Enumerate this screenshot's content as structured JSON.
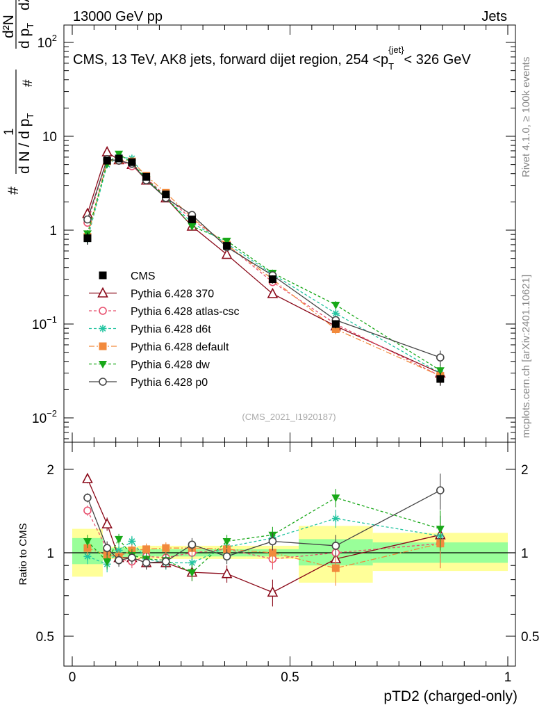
{
  "header": {
    "left": "13000 GeV pp",
    "right": "Jets"
  },
  "side_labels": {
    "rivet": "Rivet 4.1.0, ≥ 100k events",
    "mcplots": "mcplots.cern.ch [arXiv:2401.10621]"
  },
  "watermark": "(CMS_2021_I1920187)",
  "main_title": {
    "prefix": "CMS, 13 TeV, AK8 jets, forward dijet region, 254 <",
    "symbol": "p",
    "subscript": "T",
    "superscript": "{jet}",
    "suffix": "< 326 GeV"
  },
  "y_axis_label": {
    "hash": "#",
    "one": "1",
    "dN": "d N / d p",
    "sub_T": "T",
    "hash2": "#",
    "d2N": "d²N",
    "dpT": "d p",
    "sub_T2": "T",
    "dlambda": "dλ"
  },
  "colors": {
    "CMS": "#000000",
    "370": "#8b0a1a",
    "atlas-csc": "#e8506e",
    "d6t": "#22c4a0",
    "default": "#f28a3c",
    "dw": "#18a818",
    "p0": "#444444",
    "band_outer": "#ffff99",
    "band_inner": "#99ff99"
  },
  "chart_data": [
    {
      "type": "line",
      "panel": "main",
      "yscale": "log",
      "ylim": [
        0.005,
        160
      ],
      "xlim": [
        -0.04,
        1.0
      ],
      "xlabel": "",
      "ylabel": "1/N dN/dpT d2N/dpT dlambda",
      "y_ticks": [
        {
          "value": 0.01,
          "base": "10",
          "exp": "−2"
        },
        {
          "value": 0.1,
          "base": "10",
          "exp": "−1"
        },
        {
          "value": 1,
          "base": "1",
          "exp": ""
        },
        {
          "value": 10,
          "base": "10",
          "exp": ""
        },
        {
          "value": 100,
          "base": "10",
          "exp": "2"
        }
      ],
      "x_bin_edges": [
        0.0,
        0.07,
        0.09,
        0.125,
        0.15,
        0.19,
        0.24,
        0.31,
        0.4,
        0.52,
        0.69,
        1.0
      ],
      "x": [
        0.035,
        0.08,
        0.107,
        0.137,
        0.17,
        0.215,
        0.275,
        0.355,
        0.46,
        0.605,
        0.845
      ],
      "series": [
        {
          "name": "CMS",
          "label": "CMS",
          "marker": "square-filled",
          "dash": "none",
          "values": [
            0.82,
            5.5,
            5.8,
            5.3,
            3.7,
            2.4,
            1.3,
            0.68,
            0.3,
            0.1,
            0.026
          ],
          "errors": [
            0.12,
            0.3,
            0.3,
            0.3,
            0.2,
            0.15,
            0.1,
            0.05,
            0.03,
            0.01,
            0.004
          ]
        },
        {
          "name": "370",
          "label": "Pythia 6.428 370",
          "marker": "triangle-up-open",
          "dash": "none",
          "values": [
            1.5,
            6.8,
            5.6,
            5.0,
            3.4,
            2.2,
            1.1,
            0.55,
            0.21,
            0.095,
            0.03
          ],
          "errors": [
            0.1,
            0.3,
            0.3,
            0.3,
            0.2,
            0.12,
            0.08,
            0.04,
            0.02,
            0.01,
            0.005
          ]
        },
        {
          "name": "atlas-csc",
          "label": "Pythia 6.428 atlas-csc",
          "marker": "circle-open",
          "dash": "4,3",
          "values": [
            1.2,
            5.6,
            5.5,
            4.8,
            3.6,
            2.3,
            1.3,
            0.7,
            0.28,
            0.1,
            0.028
          ],
          "errors": [
            0.08,
            0.3,
            0.3,
            0.3,
            0.2,
            0.12,
            0.08,
            0.05,
            0.02,
            0.01,
            0.005
          ]
        },
        {
          "name": "d6t",
          "label": "Pythia 6.428 d6t",
          "marker": "star",
          "dash": "4,3",
          "values": [
            0.8,
            5.0,
            6.0,
            5.8,
            3.5,
            2.2,
            1.2,
            0.72,
            0.34,
            0.13,
            0.03
          ],
          "errors": [
            0.08,
            0.3,
            0.3,
            0.3,
            0.2,
            0.12,
            0.08,
            0.05,
            0.03,
            0.01,
            0.005
          ]
        },
        {
          "name": "default",
          "label": "Pythia 6.428 default",
          "marker": "square-filled",
          "dash": "8,3,2,3",
          "values": [
            0.85,
            5.4,
            5.6,
            5.4,
            3.8,
            2.5,
            1.35,
            0.7,
            0.3,
            0.088,
            0.028
          ],
          "errors": [
            0.08,
            0.3,
            0.3,
            0.3,
            0.2,
            0.12,
            0.08,
            0.05,
            0.02,
            0.01,
            0.005
          ]
        },
        {
          "name": "dw",
          "label": "Pythia 6.428 dw",
          "marker": "triangle-down-filled",
          "dash": "4,3",
          "values": [
            0.92,
            5.1,
            6.5,
            5.2,
            3.5,
            2.25,
            1.1,
            0.77,
            0.35,
            0.16,
            0.032
          ],
          "errors": [
            0.08,
            0.3,
            0.3,
            0.3,
            0.2,
            0.12,
            0.08,
            0.05,
            0.03,
            0.015,
            0.005
          ]
        },
        {
          "name": "p0",
          "label": "Pythia 6.428 p0",
          "marker": "circle-open",
          "dash": "none",
          "values": [
            1.3,
            5.7,
            5.5,
            5.1,
            3.4,
            2.2,
            1.45,
            0.66,
            0.33,
            0.11,
            0.044
          ],
          "errors": [
            0.08,
            0.3,
            0.3,
            0.3,
            0.2,
            0.12,
            0.08,
            0.05,
            0.03,
            0.01,
            0.008
          ]
        }
      ],
      "legend": {
        "placement": "middle-left"
      }
    },
    {
      "type": "line",
      "panel": "ratio",
      "yscale": "log",
      "ylim": [
        0.4,
        2.4
      ],
      "xlim": [
        -0.04,
        1.0
      ],
      "xlabel": "pTD2 (charged-only)",
      "ylabel": "Ratio to CMS",
      "y_ticks": [
        {
          "value": 0.5,
          "label": "0.5"
        },
        {
          "value": 1,
          "label": "1"
        },
        {
          "value": 2,
          "label": "2"
        }
      ],
      "x_ticks": [
        {
          "value": 0,
          "label": "0"
        },
        {
          "value": 0.5,
          "label": "0.5"
        },
        {
          "value": 1,
          "label": "1"
        }
      ],
      "band_inner": [
        [
          0.91,
          1.13
        ],
        [
          0.96,
          1.04
        ],
        [
          0.96,
          1.04
        ],
        [
          0.96,
          1.04
        ],
        [
          0.97,
          1.03
        ],
        [
          0.97,
          1.03
        ],
        [
          0.97,
          1.03
        ],
        [
          0.97,
          1.03
        ],
        [
          0.97,
          1.03
        ],
        [
          0.9,
          1.12
        ],
        [
          0.92,
          1.09
        ]
      ],
      "band_outer": [
        [
          0.82,
          1.22
        ],
        [
          0.95,
          1.05
        ],
        [
          0.95,
          1.05
        ],
        [
          0.95,
          1.05
        ],
        [
          0.95,
          1.06
        ],
        [
          0.95,
          1.06
        ],
        [
          0.95,
          1.06
        ],
        [
          0.95,
          1.06
        ],
        [
          0.95,
          1.06
        ],
        [
          0.78,
          1.25
        ],
        [
          0.86,
          1.18
        ]
      ],
      "series": [
        {
          "name": "370",
          "values": [
            1.85,
            1.27,
            0.96,
            0.96,
            0.92,
            0.92,
            0.85,
            0.84,
            0.72,
            0.95,
            1.16
          ],
          "errors": [
            0.07,
            0.07,
            0.05,
            0.05,
            0.05,
            0.05,
            0.06,
            0.06,
            0.08,
            0.1,
            0.2
          ]
        },
        {
          "name": "atlas-csc",
          "values": [
            1.42,
            1.03,
            0.95,
            0.93,
            0.97,
            0.96,
            1.0,
            1.03,
            0.95,
            1.0,
            1.08
          ],
          "errors": [
            0.06,
            0.06,
            0.05,
            0.05,
            0.05,
            0.05,
            0.06,
            0.06,
            0.08,
            0.1,
            0.2
          ]
        },
        {
          "name": "d6t",
          "values": [
            0.97,
            0.91,
            1.02,
            1.1,
            0.95,
            0.92,
            0.92,
            1.05,
            1.13,
            1.33,
            1.15
          ],
          "errors": [
            0.06,
            0.06,
            0.05,
            0.05,
            0.05,
            0.05,
            0.06,
            0.06,
            0.08,
            0.1,
            0.2
          ]
        },
        {
          "name": "default",
          "values": [
            1.04,
            0.98,
            0.97,
            1.02,
            1.03,
            1.04,
            1.04,
            1.03,
            1.0,
            0.88,
            1.08
          ],
          "errors": [
            0.06,
            0.06,
            0.05,
            0.05,
            0.05,
            0.05,
            0.06,
            0.06,
            0.08,
            0.12,
            0.2
          ]
        },
        {
          "name": "dw",
          "values": [
            1.1,
            0.93,
            1.12,
            0.98,
            0.95,
            0.94,
            0.85,
            1.1,
            1.16,
            1.58,
            1.22
          ],
          "errors": [
            0.06,
            0.06,
            0.05,
            0.05,
            0.05,
            0.05,
            0.06,
            0.06,
            0.08,
            0.12,
            0.2
          ]
        },
        {
          "name": "p0",
          "values": [
            1.58,
            1.04,
            0.94,
            0.96,
            0.92,
            0.93,
            1.07,
            0.97,
            1.1,
            1.06,
            1.68
          ],
          "errors": [
            0.06,
            0.06,
            0.05,
            0.05,
            0.05,
            0.05,
            0.06,
            0.06,
            0.08,
            0.1,
            0.25
          ]
        }
      ]
    }
  ]
}
